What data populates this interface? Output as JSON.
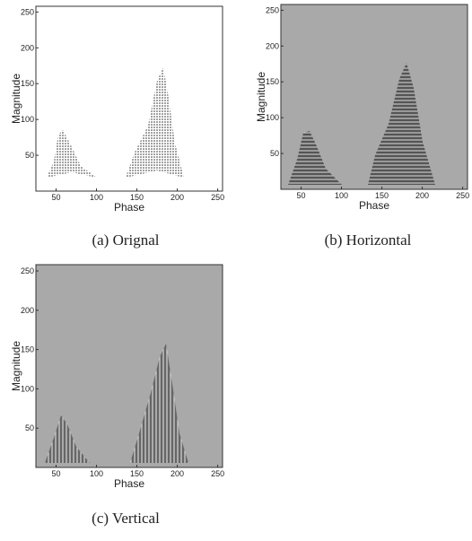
{
  "chart_data": [
    {
      "type": "scatter",
      "caption": "(a) Orignal",
      "xlabel": "Phase",
      "ylabel": "Magnitude",
      "xlim": [
        25,
        256
      ],
      "ylim": [
        0,
        258
      ],
      "xticks": [
        50,
        100,
        150,
        200,
        250
      ],
      "yticks": [
        50,
        100,
        150,
        200,
        250
      ],
      "background": "#ffffff"
    },
    {
      "type": "scatter",
      "caption": "(b) Horizontal",
      "xlabel": "Phase",
      "ylabel": "Magnitude",
      "xlim": [
        25,
        256
      ],
      "ylim": [
        0,
        258
      ],
      "xticks": [
        50,
        100,
        150,
        200,
        250
      ],
      "yticks": [
        50,
        100,
        150,
        200,
        250
      ],
      "background": "#a9a9a9"
    },
    {
      "type": "scatter",
      "caption": "(c) Vertical",
      "xlabel": "Phase",
      "ylabel": "Magnitude",
      "xlim": [
        25,
        256
      ],
      "ylim": [
        0,
        258
      ],
      "xticks": [
        50,
        100,
        150,
        200,
        250
      ],
      "yticks": [
        50,
        100,
        150,
        200,
        250
      ],
      "background": "#a9a9a9"
    }
  ]
}
